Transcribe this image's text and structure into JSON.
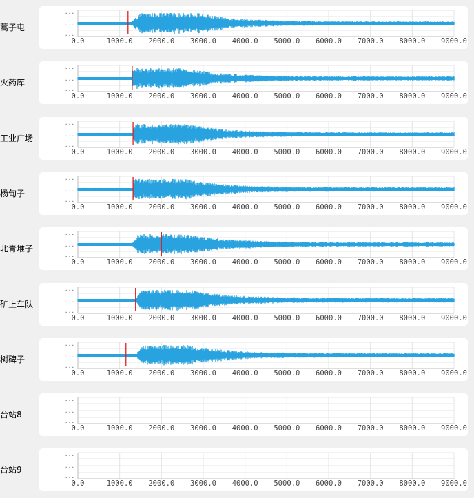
{
  "chart_data": {
    "type": "line",
    "x_ticks": [
      "0.0",
      "1000.0",
      "2000.0",
      "3000.0",
      "4000.0",
      "5000.0",
      "6000.0",
      "7000.0",
      "8000.0",
      "9000.0"
    ],
    "xlim": [
      0,
      9000
    ],
    "y_tick_text": "...",
    "series_color": "#29a3df",
    "marker_color": "#e02020",
    "stations": [
      {
        "name": "蒿子屯",
        "has_signal": true,
        "arrival": 1200,
        "onset": 1280,
        "peak_start": 1500,
        "peak_end": 2900,
        "max_amp": 0.95,
        "tail_amp": 0.18
      },
      {
        "name": "火药库",
        "has_signal": true,
        "arrival": 1300,
        "onset": 1300,
        "peak_start": 1300,
        "peak_end": 2600,
        "max_amp": 0.95,
        "tail_amp": 0.2
      },
      {
        "name": "工业广场",
        "has_signal": true,
        "arrival": 1320,
        "onset": 1320,
        "peak_start": 1320,
        "peak_end": 2600,
        "max_amp": 0.95,
        "tail_amp": 0.18
      },
      {
        "name": "杨甸子",
        "has_signal": true,
        "arrival": 1320,
        "onset": 1320,
        "peak_start": 1320,
        "peak_end": 2600,
        "max_amp": 0.95,
        "tail_amp": 0.2
      },
      {
        "name": "北青堆子",
        "has_signal": true,
        "arrival": 2000,
        "onset": 1300,
        "peak_start": 1450,
        "peak_end": 2700,
        "max_amp": 0.95,
        "tail_amp": 0.2
      },
      {
        "name": "矿上车队",
        "has_signal": true,
        "arrival": 1380,
        "onset": 1380,
        "peak_start": 1500,
        "peak_end": 2700,
        "max_amp": 0.95,
        "tail_amp": 0.22
      },
      {
        "name": "树碑子",
        "has_signal": true,
        "arrival": 1150,
        "onset": 1400,
        "peak_start": 1550,
        "peak_end": 2700,
        "max_amp": 0.95,
        "tail_amp": 0.2
      },
      {
        "name": "台站8",
        "has_signal": false
      },
      {
        "name": "台站9",
        "has_signal": false
      }
    ]
  }
}
